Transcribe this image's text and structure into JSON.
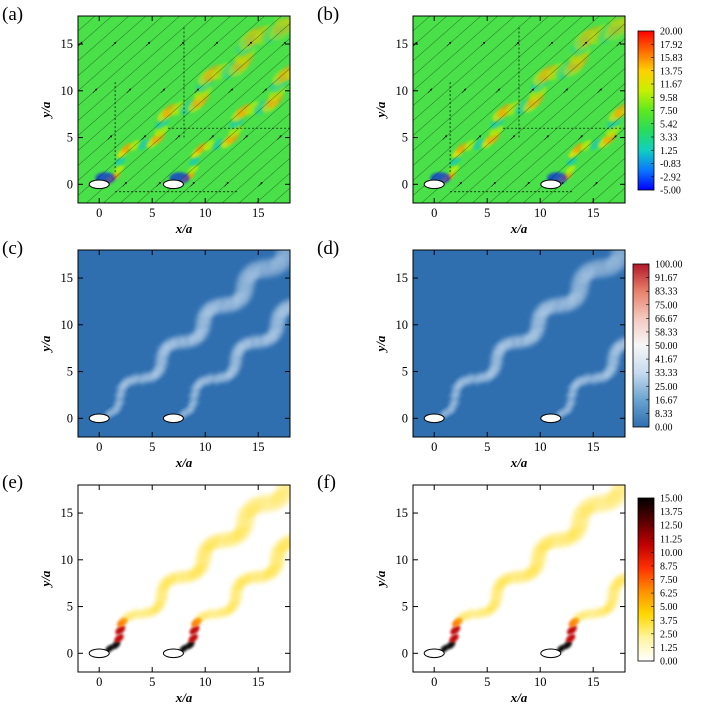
{
  "chart_data": {
    "type": "heatmap",
    "rows": [
      {
        "colorbar": {
          "ticks": [
            "20.00",
            "17.92",
            "15.83",
            "13.75",
            "11.67",
            "9.58",
            "7.50",
            "5.42",
            "3.33",
            "1.25",
            "-0.83",
            "-2.92",
            "-5.00"
          ],
          "colors": [
            "#ff0000",
            "#ff6a00",
            "#ffd000",
            "#c8f000",
            "#5ee820",
            "#28dc5c",
            "#10d0c0",
            "#0a78ff",
            "#0000ff"
          ]
        },
        "panels": [
          {
            "label": "(a)",
            "cylinders_x": [
              0,
              7
            ]
          },
          {
            "label": "(b)",
            "cylinders_x": [
              0,
              11
            ]
          }
        ]
      },
      {
        "colorbar": {
          "ticks": [
            "100.00",
            "91.67",
            "83.33",
            "75.00",
            "66.67",
            "58.33",
            "50.00",
            "41.67",
            "33.33",
            "25.00",
            "16.67",
            "8.33",
            "0.00"
          ],
          "colors": [
            "#b2182b",
            "#e8806a",
            "#f4c9bf",
            "#f6f6f6",
            "#c6dbef",
            "#6aa3d0",
            "#2f6fb0"
          ]
        },
        "panels": [
          {
            "label": "(c)",
            "cylinders_x": [
              0,
              7
            ]
          },
          {
            "label": "(d)",
            "cylinders_x": [
              0,
              11
            ]
          }
        ]
      },
      {
        "colorbar": {
          "ticks": [
            "15.00",
            "13.75",
            "12.50",
            "11.25",
            "10.00",
            "8.75",
            "7.50",
            "6.25",
            "5.00",
            "3.75",
            "2.50",
            "1.25",
            "0.00"
          ],
          "colors": [
            "#000000",
            "#5a0000",
            "#c00000",
            "#ff3000",
            "#ff9000",
            "#ffd800",
            "#fff4a0",
            "#ffffff"
          ]
        },
        "panels": [
          {
            "label": "(e)",
            "cylinders_x": [
              0,
              7
            ]
          },
          {
            "label": "(f)",
            "cylinders_x": [
              0,
              11
            ]
          }
        ]
      }
    ],
    "xlabel": "x/a",
    "ylabel": "y/a",
    "xticks": [
      0,
      5,
      10,
      15
    ],
    "yticks": [
      0,
      5,
      10,
      15
    ],
    "xlim": [
      -2,
      18
    ],
    "ylim": [
      -2,
      18
    ]
  }
}
